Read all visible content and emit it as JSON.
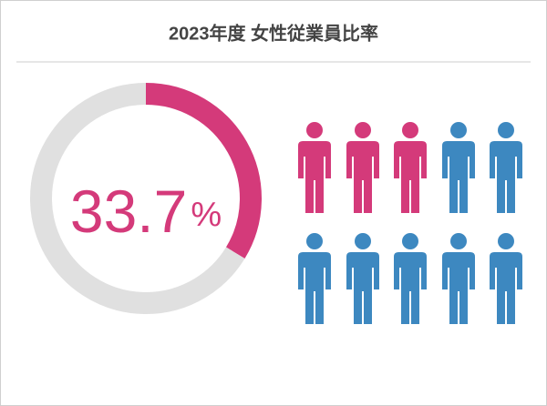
{
  "chart_data": [
    {
      "type": "donut",
      "title": "2023年度 女性従業員比率",
      "values": [
        33.7,
        66.3
      ],
      "colors": [
        "#d43a7a",
        "#e0e0e0"
      ],
      "unit": "%"
    },
    {
      "type": "pictogram",
      "values": [
        3,
        7
      ],
      "colors": [
        "#d43a7a",
        "#3d88c0"
      ],
      "per_row": 5
    }
  ]
}
